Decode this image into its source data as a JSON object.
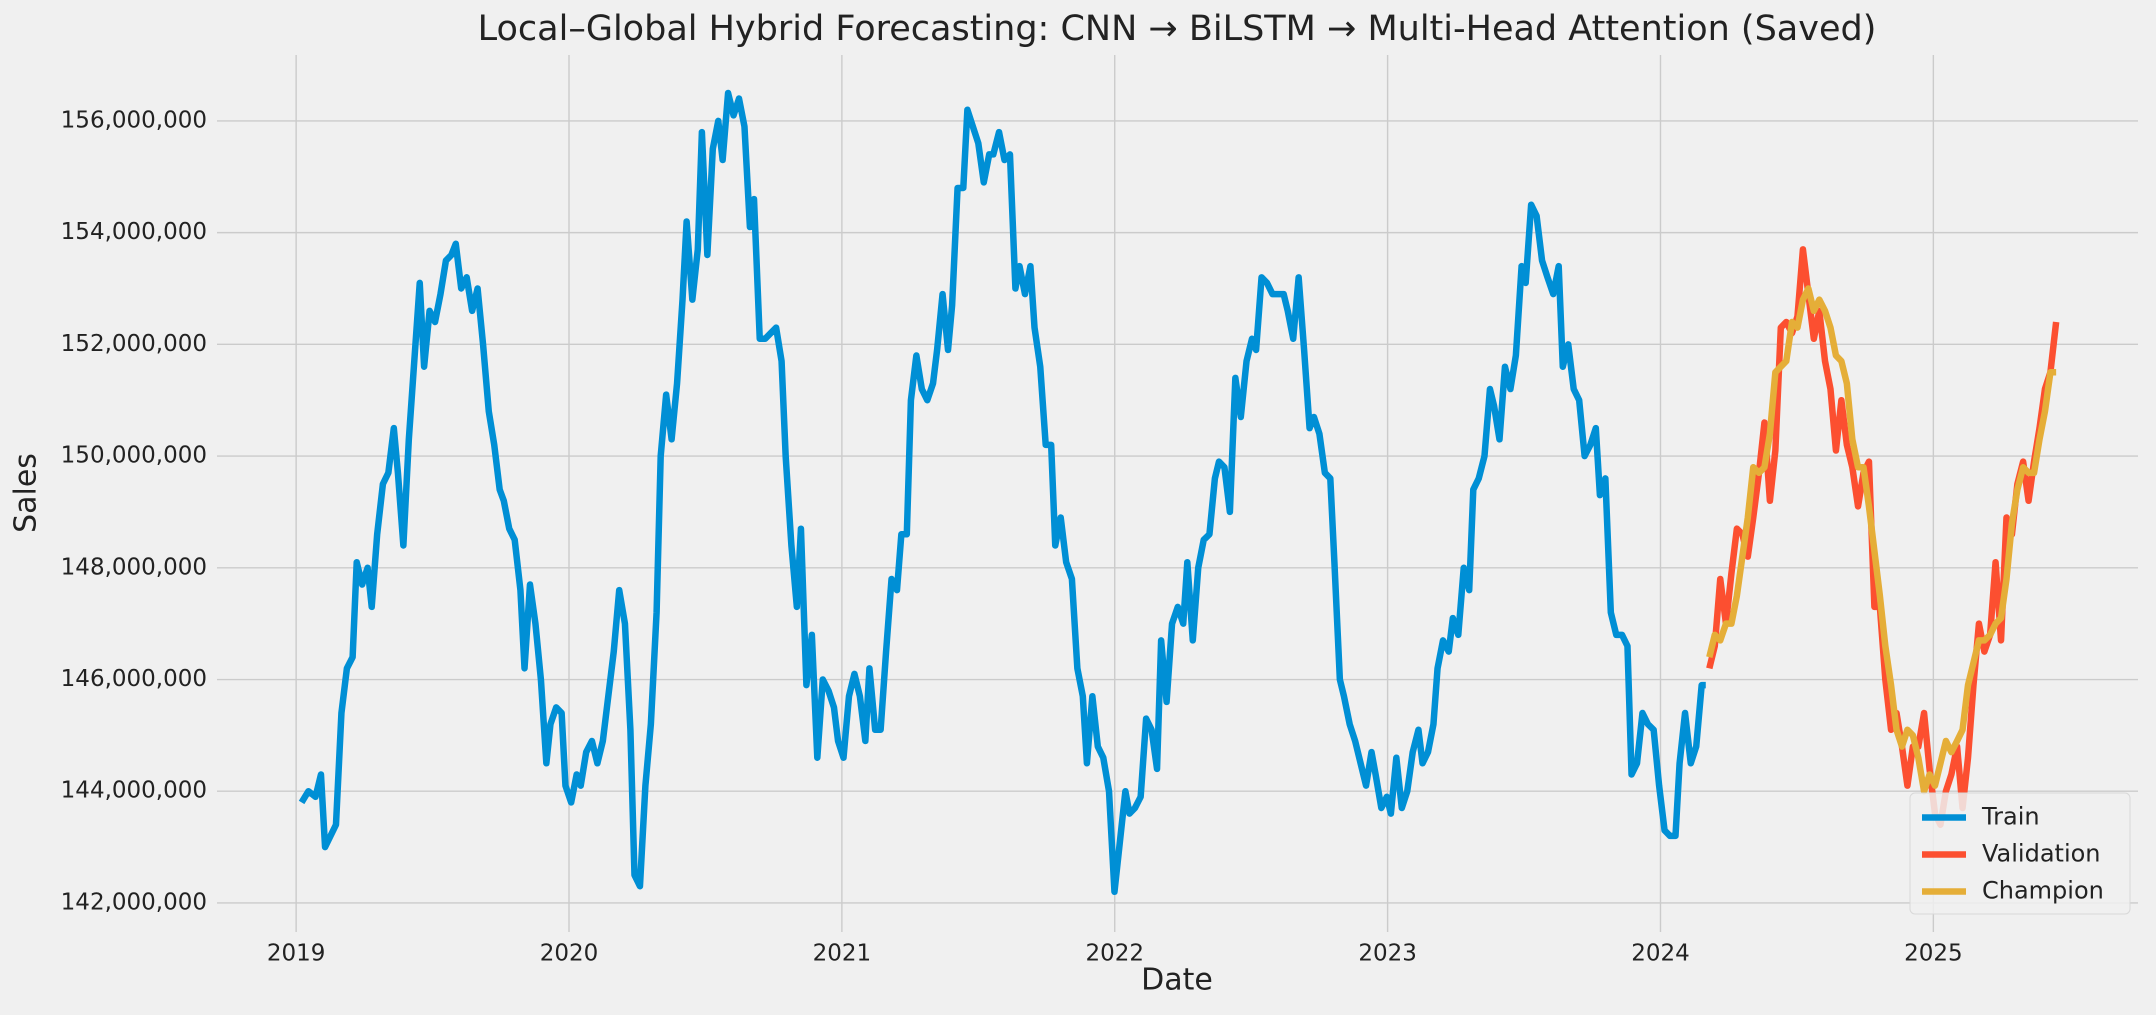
{
  "chart_data": {
    "type": "line",
    "title": "Local–Global Hybrid Forecasting: CNN → BiLSTM → Multi-Head Attention (Saved)",
    "xlabel": "Date",
    "ylabel": "Sales",
    "xlim": [
      2018.71,
      2025.75
    ],
    "xticks": [
      2019,
      2020,
      2021,
      2022,
      2023,
      2024,
      2025
    ],
    "ylim": [
      141480000,
      157180000
    ],
    "yticks": [
      {
        "value": 142000000,
        "label": "142,000,000"
      },
      {
        "value": 144000000,
        "label": "144,000,000"
      },
      {
        "value": 146000000,
        "label": "146,000,000"
      },
      {
        "value": 148000000,
        "label": "148,000,000"
      },
      {
        "value": 150000000,
        "label": "150,000,000"
      },
      {
        "value": 152000000,
        "label": "152,000,000"
      },
      {
        "value": 154000000,
        "label": "154,000,000"
      },
      {
        "value": 156000000,
        "label": "156,000,000"
      }
    ],
    "grid": true,
    "legend": "lower right",
    "series": [
      {
        "name": "Train",
        "color": "#008fd5",
        "x": [
          2019.02,
          2019.045,
          2019.071,
          2019.091,
          2019.106,
          2019.146,
          2019.166,
          2019.186,
          2019.207,
          2019.222,
          2019.242,
          2019.262,
          2019.277,
          2019.297,
          2019.318,
          2019.338,
          2019.358,
          2019.373,
          2019.393,
          2019.413,
          2019.453,
          2019.469,
          2019.489,
          2019.509,
          2019.529,
          2019.549,
          2019.569,
          2019.585,
          2019.605,
          2019.625,
          2019.645,
          2019.665,
          2019.685,
          2019.706,
          2019.726,
          2019.746,
          2019.761,
          2019.781,
          2019.801,
          2019.822,
          2019.837,
          2019.857,
          2019.877,
          2019.897,
          2019.917,
          2019.932,
          2019.953,
          2019.973,
          2019.987,
          2020.008,
          2020.028,
          2020.043,
          2020.063,
          2020.084,
          2020.104,
          2020.124,
          2020.144,
          2020.164,
          2020.184,
          2020.205,
          2020.225,
          2020.24,
          2020.26,
          2020.28,
          2020.3,
          2020.321,
          2020.336,
          2020.356,
          2020.376,
          2020.396,
          2020.416,
          2020.431,
          2020.452,
          2020.472,
          2020.487,
          2020.507,
          2020.527,
          2020.547,
          2020.563,
          2020.583,
          2020.603,
          2020.623,
          2020.643,
          2020.663,
          2020.678,
          2020.699,
          2020.719,
          2020.739,
          2020.759,
          2020.779,
          2020.794,
          2020.815,
          2020.835,
          2020.85,
          2020.87,
          2020.89,
          2020.91,
          2020.93,
          2020.951,
          2020.971,
          2020.986,
          2021.006,
          2021.026,
          2021.046,
          2021.066,
          2021.086,
          2021.101,
          2021.122,
          2021.142,
          2021.162,
          2021.182,
          2021.202,
          2021.218,
          2021.238,
          2021.253,
          2021.273,
          2021.293,
          2021.313,
          2021.334,
          2021.349,
          2021.369,
          2021.389,
          2021.404,
          2021.424,
          2021.445,
          2021.46,
          2021.48,
          2021.5,
          2021.52,
          2021.54,
          2021.555,
          2021.576,
          2021.596,
          2021.616,
          2021.636,
          2021.651,
          2021.671,
          2021.691,
          2021.706,
          2021.727,
          2021.747,
          2021.767,
          2021.782,
          2021.802,
          2021.822,
          2021.843,
          2021.863,
          2021.883,
          2021.898,
          2021.918,
          2021.938,
          2021.958,
          2021.979,
          2021.999,
          2022.019,
          2022.039,
          2022.054,
          2022.074,
          2022.095,
          2022.115,
          2022.135,
          2022.155,
          2022.17,
          2022.19,
          2022.21,
          2022.231,
          2022.251,
          2022.266,
          2022.286,
          2022.306,
          2022.326,
          2022.347,
          2022.367,
          2022.382,
          2022.402,
          2022.422,
          2022.442,
          2022.462,
          2022.483,
          2022.503,
          2022.518,
          2022.538,
          2022.558,
          2022.578,
          2022.599,
          2022.619,
          2022.634,
          2022.654,
          2022.674,
          2022.694,
          2022.714,
          2022.73,
          2022.75,
          2022.77,
          2022.79,
          2022.805,
          2022.825,
          2022.84,
          2022.861,
          2022.881,
          2022.901,
          2022.921,
          2022.941,
          2022.956,
          2022.977,
          2022.997,
          2023.012,
          2023.032,
          2023.052,
          2023.072,
          2023.092,
          2023.113,
          2023.128,
          2023.148,
          2023.168,
          2023.183,
          2023.203,
          2023.224,
          2023.239,
          2023.259,
          2023.279,
          2023.299,
          2023.314,
          2023.334,
          2023.355,
          2023.375,
          2023.39,
          2023.41,
          2023.43,
          2023.45,
          2023.47,
          2023.491,
          2023.506,
          2023.526,
          2023.546,
          2023.566,
          2023.586,
          2023.607,
          2023.627,
          2023.642,
          2023.662,
          2023.682,
          2023.702,
          2023.722,
          2023.743,
          2023.763,
          2023.778,
          2023.798,
          2023.818,
          2023.838,
          2023.859,
          2023.879,
          2023.894,
          2023.914,
          2023.934,
          2023.954,
          2023.975,
          2023.995,
          2024.015,
          2024.035,
          2024.055,
          2024.07,
          2024.09,
          2024.111,
          2024.131,
          2024.151,
          2024.166
        ],
        "values": [
          143800000,
          144000000,
          143900000,
          144300000,
          143000000,
          143400000,
          145400000,
          146200000,
          146400000,
          148100000,
          147700000,
          148000000,
          147300000,
          148600000,
          149500000,
          149700000,
          150500000,
          149700000,
          148400000,
          150300000,
          153100000,
          151600000,
          152600000,
          152400000,
          152900000,
          153500000,
          153600000,
          153800000,
          153000000,
          153200000,
          152600000,
          153000000,
          152000000,
          150800000,
          150200000,
          149400000,
          149200000,
          148700000,
          148500000,
          147600000,
          146200000,
          147700000,
          147000000,
          146000000,
          144500000,
          145200000,
          145500000,
          145400000,
          144100000,
          143800000,
          144300000,
          144100000,
          144700000,
          144900000,
          144500000,
          144900000,
          145700000,
          146500000,
          147600000,
          147000000,
          145100000,
          142500000,
          142300000,
          144100000,
          145200000,
          147200000,
          150000000,
          151100000,
          150300000,
          151300000,
          152800000,
          154200000,
          152800000,
          153700000,
          155800000,
          153600000,
          155500000,
          156000000,
          155300000,
          156500000,
          156100000,
          156400000,
          155900000,
          154100000,
          154600000,
          152100000,
          152100000,
          152200000,
          152300000,
          151700000,
          150000000,
          148400000,
          147300000,
          148700000,
          145900000,
          146800000,
          144600000,
          146000000,
          145800000,
          145500000,
          144900000,
          144600000,
          145700000,
          146100000,
          145700000,
          144900000,
          146200000,
          145100000,
          145100000,
          146500000,
          147800000,
          147600000,
          148600000,
          148600000,
          151000000,
          151800000,
          151200000,
          151000000,
          151300000,
          151900000,
          152900000,
          151900000,
          152700000,
          154800000,
          154800000,
          156200000,
          155900000,
          155600000,
          154900000,
          155400000,
          155400000,
          155800000,
          155300000,
          155400000,
          153000000,
          153400000,
          152900000,
          153400000,
          152300000,
          151600000,
          150200000,
          150200000,
          148400000,
          148900000,
          148100000,
          147800000,
          146200000,
          145700000,
          144500000,
          145700000,
          144800000,
          144600000,
          144000000,
          142200000,
          143100000,
          144000000,
          143600000,
          143700000,
          143900000,
          145300000,
          145100000,
          144400000,
          146700000,
          145600000,
          147000000,
          147300000,
          147000000,
          148100000,
          146700000,
          148000000,
          148500000,
          148600000,
          149600000,
          149900000,
          149800000,
          149000000,
          151400000,
          150700000,
          151700000,
          152100000,
          151900000,
          153200000,
          153100000,
          152900000,
          152900000,
          152900000,
          152600000,
          152100000,
          153200000,
          151900000,
          150500000,
          150700000,
          150400000,
          149700000,
          149600000,
          148100000,
          146000000,
          145700000,
          145200000,
          144900000,
          144500000,
          144100000,
          144700000,
          144300000,
          143700000,
          143900000,
          143600000,
          144600000,
          143700000,
          144000000,
          144700000,
          145100000,
          144500000,
          144700000,
          145200000,
          146200000,
          146700000,
          146500000,
          147100000,
          146800000,
          148000000,
          147600000,
          149400000,
          149600000,
          150000000,
          151200000,
          150900000,
          150300000,
          151600000,
          151200000,
          151800000,
          153400000,
          153100000,
          154500000,
          154300000,
          153500000,
          153200000,
          152900000,
          153400000,
          151600000,
          152000000,
          151200000,
          151000000,
          150000000,
          150200000,
          150500000,
          149300000,
          149600000,
          147200000,
          146800000,
          146800000,
          146600000,
          144300000,
          144500000,
          145400000,
          145200000,
          145100000,
          144100000,
          143300000,
          143200000,
          143200000,
          144500000,
          145400000,
          144500000,
          144800000,
          145900000,
          145900000
        ]
      },
      {
        "name": "Validation",
        "color": "#fc4f30",
        "x": [
          2024.179,
          2024.199,
          2024.219,
          2024.24,
          2024.26,
          2024.28,
          2024.3,
          2024.32,
          2024.34,
          2024.361,
          2024.381,
          2024.401,
          2024.421,
          2024.441,
          2024.461,
          2024.482,
          2024.502,
          2024.522,
          2024.542,
          2024.562,
          2024.582,
          2024.603,
          2024.623,
          2024.643,
          2024.663,
          2024.683,
          2024.703,
          2024.724,
          2024.744,
          2024.764,
          2024.784,
          2024.804,
          2024.824,
          2024.845,
          2024.865,
          2024.885,
          2024.905,
          2024.925,
          2024.945,
          2024.966,
          2024.986,
          2025.006,
          2025.026,
          2025.046,
          2025.066,
          2025.087,
          2025.107,
          2025.127,
          2025.147,
          2025.167,
          2025.187,
          2025.208,
          2025.228,
          2025.248,
          2025.268,
          2025.288,
          2025.308,
          2025.329,
          2025.349,
          2025.369,
          2025.389,
          2025.409,
          2025.429,
          2025.45
        ],
        "values": [
          146200000,
          146600000,
          147800000,
          147000000,
          147900000,
          148700000,
          148600000,
          148200000,
          148900000,
          149700000,
          150600000,
          149200000,
          150100000,
          152300000,
          152400000,
          152200000,
          152500000,
          153700000,
          152900000,
          152100000,
          152600000,
          151700000,
          151200000,
          150100000,
          151000000,
          150200000,
          149800000,
          149100000,
          149700000,
          149900000,
          147300000,
          147300000,
          146000000,
          145100000,
          145400000,
          144800000,
          144100000,
          144800000,
          144800000,
          145400000,
          144400000,
          143600000,
          143400000,
          144000000,
          144300000,
          144800000,
          143700000,
          144600000,
          145900000,
          147000000,
          146500000,
          146800000,
          148100000,
          146700000,
          148900000,
          148600000,
          149500000,
          149900000,
          149200000,
          149900000,
          150500000,
          151200000,
          151500000,
          152400000
        ]
      },
      {
        "name": "Champion",
        "color": "#e5ae38",
        "x": [
          2024.179,
          2024.199,
          2024.219,
          2024.24,
          2024.26,
          2024.28,
          2024.3,
          2024.32,
          2024.34,
          2024.361,
          2024.381,
          2024.401,
          2024.421,
          2024.441,
          2024.461,
          2024.482,
          2024.502,
          2024.522,
          2024.542,
          2024.562,
          2024.582,
          2024.603,
          2024.623,
          2024.643,
          2024.663,
          2024.683,
          2024.703,
          2024.724,
          2024.744,
          2024.764,
          2024.784,
          2024.804,
          2024.824,
          2024.845,
          2024.865,
          2024.885,
          2024.905,
          2024.925,
          2024.945,
          2024.966,
          2024.986,
          2025.006,
          2025.026,
          2025.046,
          2025.066,
          2025.087,
          2025.107,
          2025.127,
          2025.147,
          2025.167,
          2025.187,
          2025.208,
          2025.228,
          2025.248,
          2025.268,
          2025.288,
          2025.308,
          2025.329,
          2025.349,
          2025.369,
          2025.389,
          2025.409,
          2025.429,
          2025.45
        ],
        "values": [
          146400000,
          146800000,
          146700000,
          147000000,
          147000000,
          147500000,
          148200000,
          148900000,
          149800000,
          149700000,
          149800000,
          150400000,
          151500000,
          151600000,
          151700000,
          152400000,
          152300000,
          152800000,
          153000000,
          152600000,
          152800000,
          152600000,
          152300000,
          151800000,
          151700000,
          151300000,
          150300000,
          149800000,
          149800000,
          149100000,
          148300000,
          147500000,
          146600000,
          145900000,
          145100000,
          144800000,
          145100000,
          145000000,
          144600000,
          144000000,
          144300000,
          144100000,
          144500000,
          144900000,
          144700000,
          144900000,
          145100000,
          145900000,
          146300000,
          146700000,
          146700000,
          146800000,
          147000000,
          147100000,
          147800000,
          148800000,
          149400000,
          149800000,
          149700000,
          149700000,
          150300000,
          150800000,
          151500000,
          151500000
        ]
      }
    ]
  }
}
